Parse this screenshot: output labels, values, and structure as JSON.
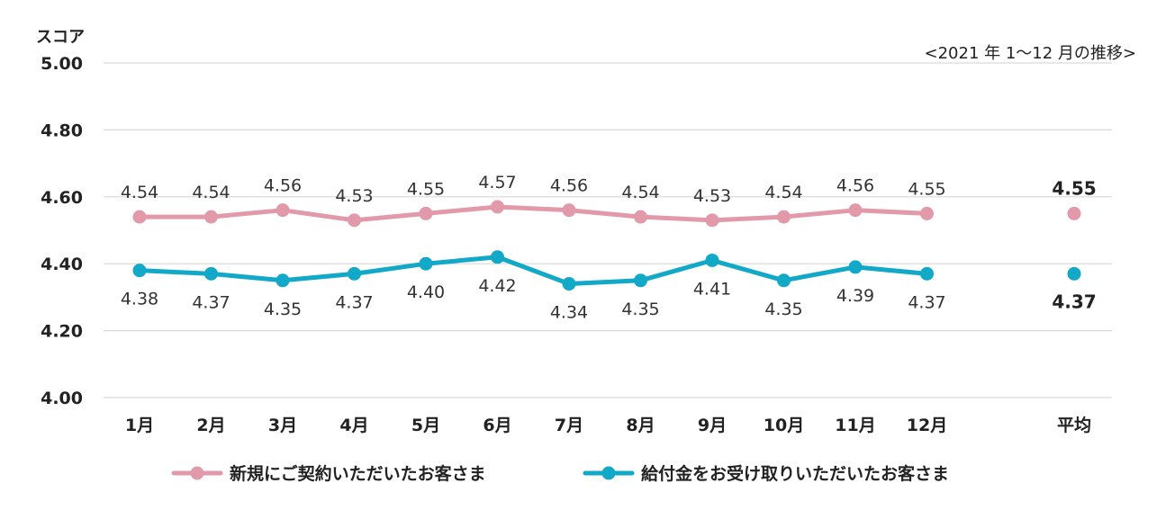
{
  "chart_data": {
    "type": "line",
    "ylabel": "スコア",
    "period_note": "<2021 年 1〜12 月の推移>",
    "ylim": [
      4.0,
      5.0
    ],
    "yticks": [
      "4.00",
      "4.20",
      "4.40",
      "4.60",
      "4.80",
      "5.00"
    ],
    "categories": [
      "1月",
      "2月",
      "3月",
      "4月",
      "5月",
      "6月",
      "7月",
      "8月",
      "9月",
      "10月",
      "11月",
      "12月"
    ],
    "average_label": "平均",
    "grid": true,
    "legend_position": "bottom",
    "series": [
      {
        "name": "新規にご契約いただいたお客さま",
        "color": "#E29AAA",
        "values": [
          4.54,
          4.54,
          4.56,
          4.53,
          4.55,
          4.57,
          4.56,
          4.54,
          4.53,
          4.54,
          4.56,
          4.55
        ],
        "labels": [
          "4.54",
          "4.54",
          "4.56",
          "4.53",
          "4.55",
          "4.57",
          "4.56",
          "4.54",
          "4.53",
          "4.54",
          "4.56",
          "4.55"
        ],
        "average": 4.55,
        "average_label": "4.55"
      },
      {
        "name": "給付金をお受け取りいただいたお客さま",
        "color": "#12A9C8",
        "values": [
          4.38,
          4.37,
          4.35,
          4.37,
          4.4,
          4.42,
          4.34,
          4.35,
          4.41,
          4.35,
          4.39,
          4.37
        ],
        "labels": [
          "4.38",
          "4.37",
          "4.35",
          "4.37",
          "4.40",
          "4.42",
          "4.34",
          "4.35",
          "4.41",
          "4.35",
          "4.39",
          "4.37"
        ],
        "average": 4.37,
        "average_label": "4.37"
      }
    ]
  }
}
